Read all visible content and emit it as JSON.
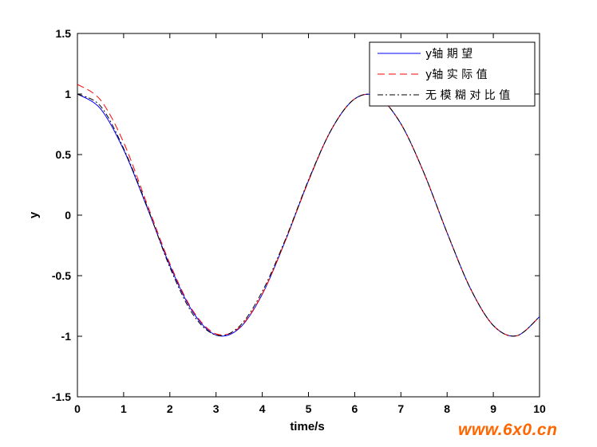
{
  "chart_data": {
    "type": "line",
    "title": "",
    "xlabel": "time/s",
    "ylabel": "y",
    "xlim": [
      0,
      10
    ],
    "ylim": [
      -1.5,
      1.5
    ],
    "xticks": [
      "0",
      "1",
      "2",
      "3",
      "4",
      "5",
      "6",
      "7",
      "8",
      "9",
      "10"
    ],
    "yticks": [
      "1.5",
      "1",
      "0.5",
      "0",
      "-0.5",
      "-1",
      "-1.5"
    ],
    "grid": false,
    "legend_position": "top-right",
    "series": [
      {
        "name": "y轴 期 望",
        "color": "#0000ff",
        "style": "solid",
        "x": [
          0,
          0.5,
          1,
          1.5,
          2,
          2.5,
          3,
          3.5,
          4,
          4.5,
          5,
          5.5,
          6,
          6.5,
          7,
          7.5,
          8,
          8.5,
          9,
          9.5,
          10
        ],
        "values": [
          1.0,
          0.878,
          0.54,
          0.071,
          -0.416,
          -0.801,
          -0.99,
          -0.936,
          -0.654,
          -0.211,
          0.284,
          0.709,
          0.96,
          0.977,
          0.754,
          0.347,
          -0.146,
          -0.602,
          -0.911,
          -0.997,
          -0.839
        ]
      },
      {
        "name": "y轴 实 际 值",
        "color": "#ff0000",
        "style": "dashed",
        "x": [
          0,
          0.5,
          1,
          1.5,
          2,
          2.5,
          3,
          3.5,
          4,
          4.5,
          5,
          5.5,
          6,
          6.5,
          7,
          7.5,
          8,
          8.5,
          9,
          9.5,
          10
        ],
        "values": [
          1.08,
          0.95,
          0.6,
          0.1,
          -0.4,
          -0.79,
          -0.98,
          -0.93,
          -0.65,
          -0.21,
          0.28,
          0.71,
          0.96,
          0.977,
          0.754,
          0.347,
          -0.146,
          -0.602,
          -0.911,
          -0.997,
          -0.839
        ]
      },
      {
        "name": "无 模 糊 对 比 值",
        "color": "#000000",
        "style": "dashdot",
        "x": [
          0,
          0.5,
          1,
          1.5,
          2,
          2.5,
          3,
          3.5,
          4,
          4.5,
          5,
          5.5,
          6,
          6.5,
          7,
          7.5,
          8,
          8.5,
          9,
          9.5,
          10
        ],
        "values": [
          1.0,
          0.9,
          0.55,
          0.08,
          -0.43,
          -0.82,
          -0.99,
          -0.92,
          -0.63,
          -0.2,
          0.29,
          0.71,
          0.96,
          0.977,
          0.754,
          0.347,
          -0.146,
          -0.602,
          -0.911,
          -0.997,
          -0.839
        ]
      }
    ]
  },
  "watermark": "www.6x0.cn"
}
